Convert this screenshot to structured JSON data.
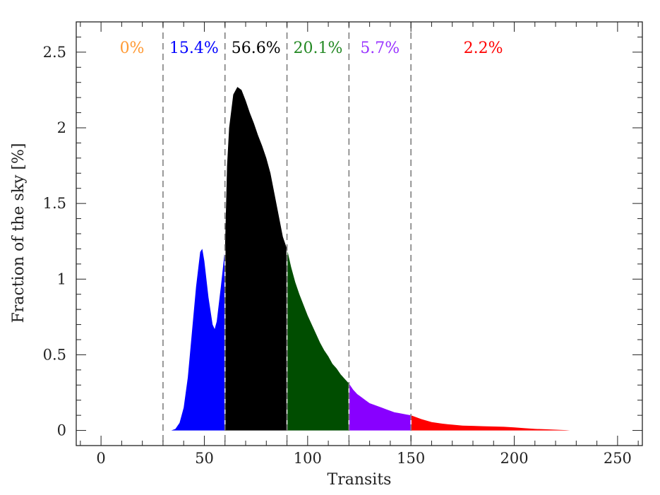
{
  "chart_data": {
    "type": "area",
    "xlabel": "Transits",
    "ylabel": "Fraction of the sky [%]",
    "xlim": [
      -12,
      262
    ],
    "ylim": [
      -0.1,
      2.7
    ],
    "x_ticks": [
      0,
      50,
      100,
      150,
      200,
      250
    ],
    "x_tick_labels": [
      "0",
      "50",
      "100",
      "150",
      "200",
      "250"
    ],
    "y_ticks": [
      0,
      0.5,
      1,
      1.5,
      2,
      2.5
    ],
    "y_tick_labels": [
      "0",
      "0.5",
      "1",
      "1.5",
      "2",
      "2.5"
    ],
    "grid": false,
    "bin_boundaries": [
      30,
      60,
      90,
      120,
      150
    ],
    "bins": [
      {
        "range": [
          0,
          30
        ],
        "label": "0%",
        "color": "#ff9933"
      },
      {
        "range": [
          30,
          60
        ],
        "label": "15.4%",
        "color": "#0000ff"
      },
      {
        "range": [
          60,
          90
        ],
        "label": "56.6%",
        "color": "#000000"
      },
      {
        "range": [
          90,
          120
        ],
        "label": "20.1%",
        "color": "#004d00"
      },
      {
        "range": [
          120,
          150
        ],
        "label": "5.7%",
        "color": "#8800ff"
      },
      {
        "range": [
          150,
          230
        ],
        "label": "2.2%",
        "color": "#ff0000"
      }
    ],
    "label_colors": [
      "#ff9933",
      "#0000ff",
      "#000000",
      "#228822",
      "#9933ff",
      "#ff0000"
    ],
    "series": [
      {
        "x": [
          34,
          36,
          38,
          40,
          42,
          44,
          46,
          48,
          49,
          50,
          52,
          54,
          55,
          56,
          58,
          60,
          61,
          62,
          64,
          66,
          68,
          70,
          72,
          74,
          76,
          78,
          80,
          82,
          84,
          86,
          88,
          90,
          92,
          94,
          96,
          98,
          100,
          102,
          104,
          106,
          108,
          110,
          112,
          114,
          116,
          118,
          120,
          122,
          124,
          126,
          128,
          130,
          132,
          134,
          136,
          138,
          140,
          142,
          144,
          146,
          148,
          150,
          155,
          160,
          165,
          170,
          175,
          180,
          185,
          190,
          195,
          200,
          205,
          210,
          215,
          220,
          222,
          225,
          227
        ],
        "y": [
          0.0,
          0.01,
          0.05,
          0.15,
          0.35,
          0.65,
          0.95,
          1.18,
          1.2,
          1.12,
          0.88,
          0.7,
          0.67,
          0.72,
          0.95,
          1.2,
          1.75,
          2.0,
          2.22,
          2.27,
          2.25,
          2.18,
          2.1,
          2.03,
          1.95,
          1.88,
          1.8,
          1.7,
          1.56,
          1.42,
          1.28,
          1.2,
          1.08,
          0.98,
          0.9,
          0.83,
          0.76,
          0.7,
          0.64,
          0.58,
          0.53,
          0.49,
          0.44,
          0.41,
          0.37,
          0.34,
          0.31,
          0.27,
          0.24,
          0.22,
          0.2,
          0.18,
          0.17,
          0.16,
          0.15,
          0.14,
          0.13,
          0.12,
          0.115,
          0.11,
          0.105,
          0.1,
          0.075,
          0.055,
          0.045,
          0.038,
          0.032,
          0.03,
          0.028,
          0.026,
          0.024,
          0.02,
          0.015,
          0.01,
          0.008,
          0.005,
          0.004,
          0.002,
          0.0
        ]
      }
    ]
  }
}
